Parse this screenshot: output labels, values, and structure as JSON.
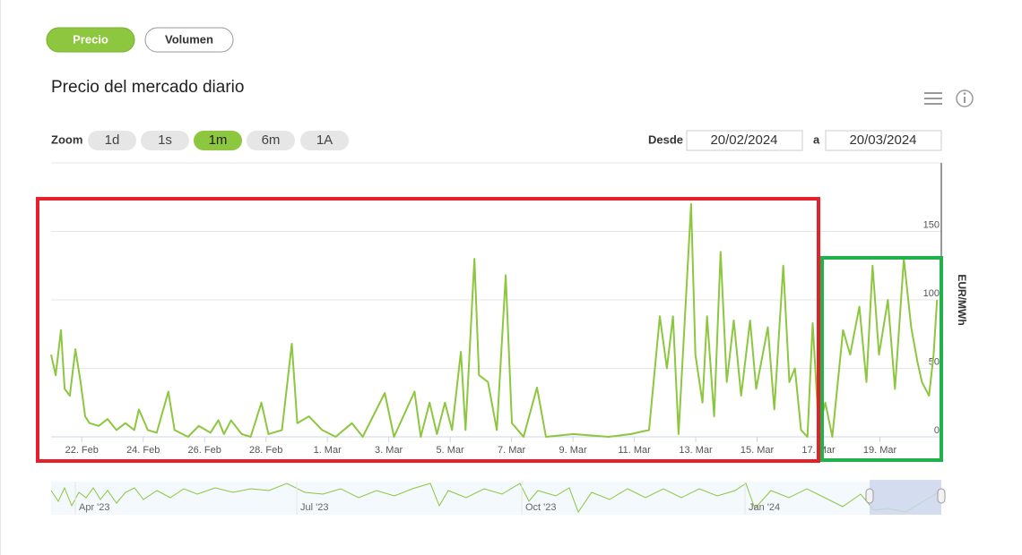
{
  "tabs": [
    "Precio",
    "Volumen"
  ],
  "title": "Precio del mercado diario",
  "zoom": {
    "label": "Zoom",
    "options": [
      "1d",
      "1s",
      "1m",
      "6m",
      "1A"
    ]
  },
  "range": {
    "from_label": "Desde",
    "from": "20/02/2024",
    "to_label": "a",
    "to": "20/03/2024"
  },
  "navigator": {
    "labels": [
      "Apr '23",
      "Jul '23",
      "Oct '23",
      "Jan '24"
    ]
  },
  "chart_data": {
    "type": "line",
    "y_label": "EUR/MWh",
    "xlim": [
      0,
      29
    ],
    "xticks": [
      {
        "value": 1,
        "label": "22. Feb"
      },
      {
        "value": 3,
        "label": "24. Feb"
      },
      {
        "value": 5,
        "label": "26. Feb"
      },
      {
        "value": 7,
        "label": "28. Feb"
      },
      {
        "value": 9,
        "label": "1. Mar"
      },
      {
        "value": 11,
        "label": "3. Mar"
      },
      {
        "value": 13,
        "label": "5. Mar"
      },
      {
        "value": 15,
        "label": "7. Mar"
      },
      {
        "value": 17,
        "label": "9. Mar"
      },
      {
        "value": 19,
        "label": "11. Mar"
      },
      {
        "value": 21,
        "label": "13. Mar"
      },
      {
        "value": 23,
        "label": "15. Mar"
      },
      {
        "value": 25,
        "label": "17. Mar"
      },
      {
        "value": 27,
        "label": "19. Mar"
      }
    ],
    "ylim": [
      0,
      200
    ],
    "yticks": [
      0,
      50,
      100,
      150
    ],
    "grid": true,
    "x": [
      0,
      0.15,
      0.32,
      0.44,
      0.61,
      0.79,
      0.96,
      1.11,
      1.25,
      1.55,
      1.84,
      2.13,
      2.42,
      2.71,
      2.86,
      3.15,
      3.44,
      3.82,
      4.02,
      4.46,
      4.81,
      5.19,
      5.45,
      5.63,
      5.86,
      6.21,
      6.5,
      6.85,
      7.08,
      7.52,
      7.84,
      8.02,
      8.4,
      8.83,
      9.27,
      9.8,
      10.15,
      10.87,
      11.17,
      11.84,
      12.04,
      12.33,
      12.57,
      12.83,
      13.06,
      13.35,
      13.5,
      13.79,
      13.94,
      14.23,
      14.52,
      14.81,
      15.01,
      15.39,
      15.83,
      16.12,
      17.0,
      18.16,
      18.89,
      19.48,
      19.83,
      20.06,
      20.26,
      20.44,
      20.85,
      20.99,
      21.22,
      21.37,
      21.6,
      21.81,
      22.01,
      22.24,
      22.48,
      22.77,
      22.97,
      23.35,
      23.56,
      23.85,
      24.05,
      24.23,
      24.43,
      24.64,
      24.81,
      25.01,
      25.22,
      25.45,
      25.8,
      26.03,
      26.33,
      26.56,
      26.76,
      26.97,
      27.26,
      27.49,
      27.78,
      28.02,
      28.22,
      28.37,
      28.6,
      28.75,
      28.86
    ],
    "series": [
      {
        "color": "#8dc63f",
        "values": [
          60,
          45,
          78,
          35,
          30,
          64,
          40,
          15,
          10,
          8,
          13,
          5,
          10,
          5,
          20,
          5,
          3,
          33,
          5,
          0,
          8,
          3,
          12,
          2,
          12,
          2,
          0,
          25,
          2,
          5,
          68,
          10,
          15,
          5,
          0,
          10,
          0,
          32,
          0,
          33,
          0,
          25,
          2,
          25,
          5,
          62,
          5,
          130,
          45,
          40,
          5,
          118,
          10,
          0,
          36,
          0,
          2,
          0,
          2,
          5,
          88,
          50,
          88,
          2,
          170,
          60,
          25,
          88,
          15,
          135,
          40,
          85,
          30,
          85,
          35,
          80,
          20,
          125,
          40,
          50,
          5,
          0,
          83,
          5,
          25,
          0,
          78,
          60,
          95,
          40,
          125,
          60,
          100,
          35,
          130,
          80,
          55,
          40,
          30,
          60,
          100
        ]
      }
    ]
  }
}
